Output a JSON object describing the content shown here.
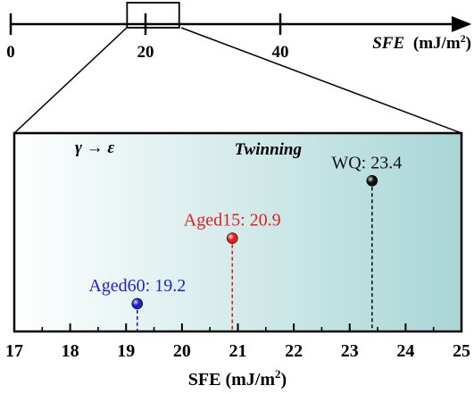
{
  "chart_data": [
    {
      "type": "number-line",
      "xlabel": "SFE (mJ/m²)",
      "xlabel_main": "SFE",
      "xlabel_unit": "(mJ/m",
      "xlabel_sup": "2",
      "xlabel_close": ")",
      "xlim": [
        0,
        50
      ],
      "ticks": [
        0,
        20,
        40
      ],
      "tick_labels": [
        "0",
        "20",
        "40"
      ],
      "zoom_range": [
        17,
        25
      ]
    },
    {
      "type": "scatter",
      "xlabel": "SFE (mJ/m²)",
      "xlabel_main": "SFE (mJ/m",
      "xlabel_sup": "2",
      "xlabel_close": ")",
      "xlim": [
        17,
        25
      ],
      "ticks": [
        17,
        18,
        19,
        20,
        21,
        22,
        23,
        24,
        25
      ],
      "tick_labels": [
        "17",
        "18",
        "19",
        "20",
        "21",
        "22",
        "23",
        "24",
        "25"
      ],
      "annotations": [
        "γ → ε",
        "Twinning"
      ],
      "points": [
        {
          "label": "Aged60: 19.2",
          "x": 19.2,
          "level": 0.14,
          "color": "#1f1fcc"
        },
        {
          "label": "Aged15: 20.9",
          "x": 20.9,
          "level": 0.47,
          "color": "#e02020"
        },
        {
          "label": "WQ: 23.4",
          "x": 23.4,
          "level": 0.76,
          "color": "#111111"
        }
      ],
      "colors": {
        "gradient_start": "#ffffff",
        "gradient_end": "#a9d6d6"
      }
    }
  ]
}
